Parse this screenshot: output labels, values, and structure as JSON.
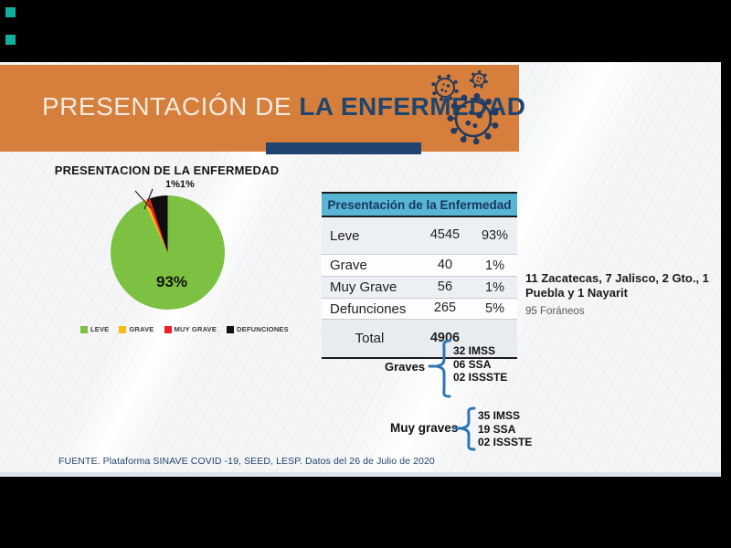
{
  "frame": {
    "background": "#000000",
    "corner_square_color": "#12AF9B"
  },
  "banner": {
    "title_regular": "PRESENTACIÓN DE ",
    "title_bold": "LA ENFERMEDAD",
    "background": "#D67E3C",
    "title_regular_color": "#F2EBDD",
    "title_bold_color": "#1E466E",
    "underline_color": "#1F4470",
    "virus_icon_color": "#243A5E"
  },
  "chart": {
    "title": "PRESENTACION DE LA ENFERMEDAD",
    "big_slice_label": "93%",
    "small_slices_label": "1%1%"
  },
  "chart_data": {
    "type": "pie",
    "title": "PRESENTACION DE LA ENFERMEDAD",
    "categories": [
      "LEVE",
      "GRAVE",
      "MUY GRAVE",
      "DEFUNCIONES"
    ],
    "values": [
      4545,
      40,
      56,
      265
    ],
    "percents": [
      93,
      1,
      1,
      5
    ],
    "percent_labels": [
      "93%",
      "1%",
      "1%",
      "5%"
    ],
    "colors": [
      "#7CC142",
      "#F9B916",
      "#EC2024",
      "#0E0E0E"
    ],
    "total": 4906,
    "legend_position": "bottom",
    "start_angle_deg": 0,
    "direction": "clockwise"
  },
  "table": {
    "header": "Presentación de la Enfermedad",
    "header_bg": "#58B6D4",
    "header_text_color": "#17375D",
    "rows": [
      {
        "label": "Leve",
        "value": "4545",
        "pct": "93%"
      },
      {
        "label": "Grave",
        "value": "40",
        "pct": "1%"
      },
      {
        "label": "Muy Grave",
        "value": "56",
        "pct": "1%"
      },
      {
        "label": "Defunciones",
        "value": "265",
        "pct": "5%"
      }
    ],
    "total_label": "Total",
    "total_value": "4906"
  },
  "annotations": {
    "states_line1": "11 Zacatecas, 7 Jalisco, 2 Gto., 1",
    "states_line2": "Puebla y 1 Nayarit",
    "foraneos": "95 Foráneos",
    "graves": {
      "label": "Graves",
      "items": [
        "32 IMSS",
        "06 SSA",
        "02 ISSSTE"
      ]
    },
    "muy_graves": {
      "label": "Muy graves",
      "items": [
        "35 IMSS",
        "19 SSA",
        "02 ISSSTE"
      ]
    },
    "brace_color": "#2E75B6"
  },
  "footer": {
    "source": "FUENTE. Plataforma SINAVE COVID -19, SEED, LESP. Datos del 26 de Julio de 2020"
  }
}
